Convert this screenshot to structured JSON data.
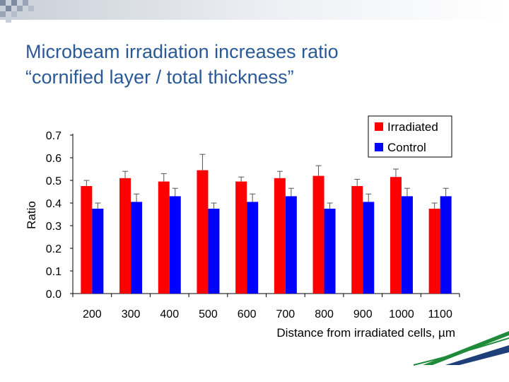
{
  "slide": {
    "title_line1": "Microbeam irradiation increases ratio",
    "title_line2": "“cornified layer / total thickness”"
  },
  "colors": {
    "title": "#2a5a96",
    "irradiated": "#ff0000",
    "control": "#0000ff",
    "accent_green": "#1e8a3a",
    "accent_blue": "#1f3f7a"
  },
  "chart_data": {
    "type": "bar",
    "title": "",
    "xlabel": "Distance from irradiated cells, µm",
    "ylabel": "Ratio",
    "ylim": [
      0,
      0.7
    ],
    "yticks": [
      "0.0",
      "0.1",
      "0.2",
      "0.3",
      "0.4",
      "0.5",
      "0.6",
      "0.7"
    ],
    "categories": [
      "200",
      "300",
      "400",
      "500",
      "600",
      "700",
      "800",
      "900",
      "1000",
      "1100"
    ],
    "legend_position": "top-right",
    "grid": false,
    "series": [
      {
        "name": "Irradiated",
        "color": "#ff0000",
        "values": [
          0.475,
          0.51,
          0.495,
          0.545,
          0.495,
          0.51,
          0.52,
          0.475,
          0.515,
          0.375
        ],
        "errors": [
          0.025,
          0.03,
          0.035,
          0.07,
          0.02,
          0.03,
          0.045,
          0.03,
          0.035,
          0.025
        ]
      },
      {
        "name": "Control",
        "color": "#0000ff",
        "values": [
          0.375,
          0.405,
          0.43,
          0.375,
          0.405,
          0.43,
          0.375,
          0.405,
          0.43,
          0.43
        ],
        "errors": [
          0.025,
          0.035,
          0.035,
          0.025,
          0.035,
          0.035,
          0.025,
          0.035,
          0.035,
          0.035
        ]
      }
    ]
  }
}
